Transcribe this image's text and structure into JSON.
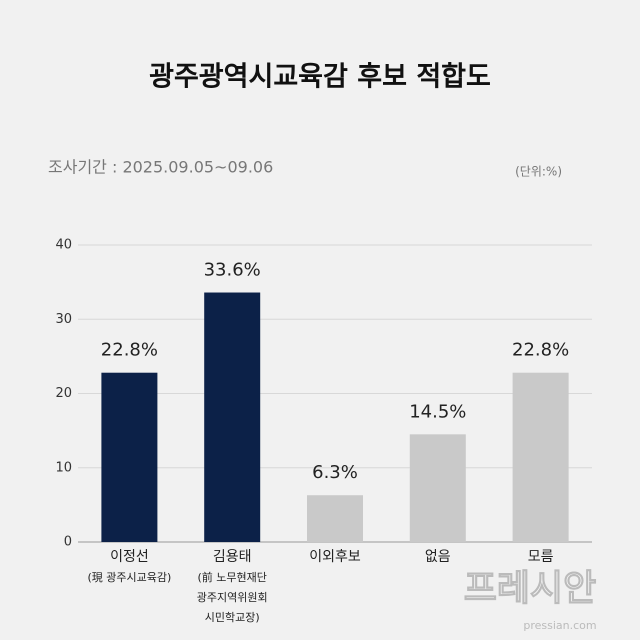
{
  "chart_data": {
    "type": "bar",
    "title": "광주광역시교육감 후보 적합도",
    "subtitle": "조사기간 : 2025.09.05~09.06",
    "unit": "(단위:%)",
    "categories": [
      "이정선",
      "김용태",
      "이외후보",
      "없음",
      "모름"
    ],
    "category_notes": [
      [
        "(現 광주시교육감)"
      ],
      [
        "(前 노무현재단",
        "광주지역위원회",
        "시민학교장)"
      ],
      null,
      null,
      null
    ],
    "values": [
      22.8,
      33.6,
      6.3,
      14.5,
      22.8
    ],
    "value_labels": [
      "22.8%",
      "33.6%",
      "6.3%",
      "14.5%",
      "22.8%"
    ],
    "colors": [
      "#0c2148",
      "#0c2148",
      "#c9c9c9",
      "#c9c9c9",
      "#c9c9c9"
    ],
    "ylim": [
      0,
      40
    ],
    "yticks": [
      0,
      10,
      20,
      30,
      40
    ],
    "grid": true,
    "watermark": {
      "name": "프레시안",
      "site": "pressian.com"
    }
  }
}
